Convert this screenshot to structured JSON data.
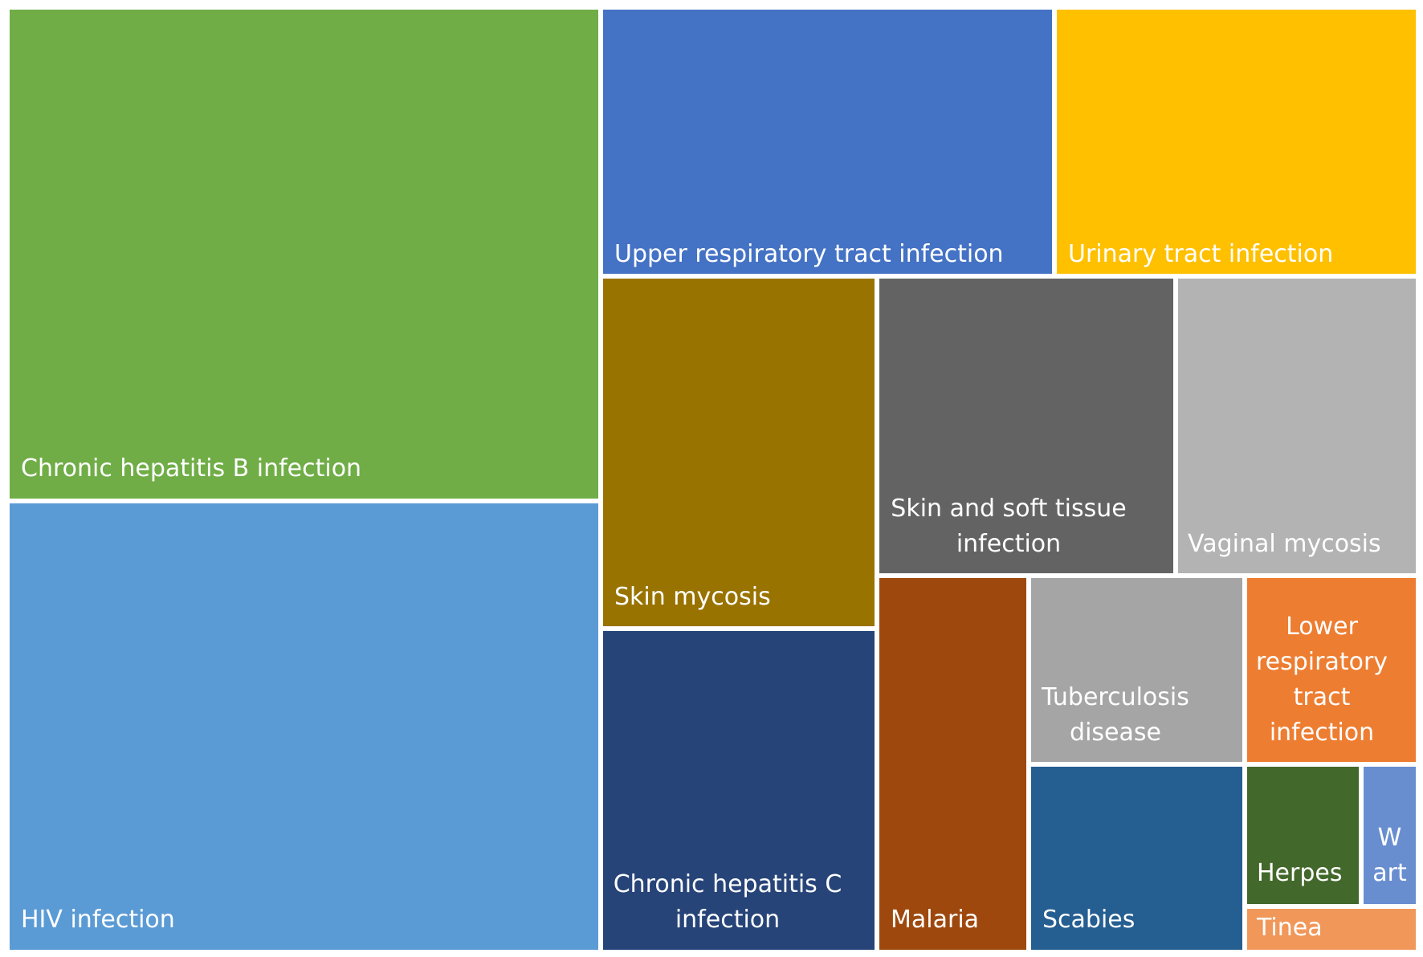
{
  "chart_data": {
    "type": "treemap",
    "title": "",
    "items": [
      {
        "label": "Chronic hepatitis B infection",
        "color": "#70AD47"
      },
      {
        "label": "HIV infection",
        "color": "#5B9BD5"
      },
      {
        "label": "Upper respiratory tract infection",
        "color": "#4472C4"
      },
      {
        "label": "Urinary tract infection",
        "color": "#FFC000"
      },
      {
        "label": "Skin mycosis",
        "color": "#997300"
      },
      {
        "label": "Skin and soft tissue\ninfection",
        "color": "#636363"
      },
      {
        "label": "Vaginal mycosis",
        "color": "#B3B3B3"
      },
      {
        "label": "Chronic hepatitis C\ninfection",
        "color": "#264478"
      },
      {
        "label": "Malaria",
        "color": "#9E480E"
      },
      {
        "label": "Tuberculosis\ndisease",
        "color": "#A5A5A5"
      },
      {
        "label": "Lower\nrespiratory\ntract\ninfection",
        "color": "#ED7D31"
      },
      {
        "label": "Scabies",
        "color": "#255E91"
      },
      {
        "label": "Herpes",
        "color": "#43682B"
      },
      {
        "label": "W\nart",
        "color": "#698ED0"
      },
      {
        "label": "Tinea",
        "color": "#F1975A"
      }
    ]
  }
}
